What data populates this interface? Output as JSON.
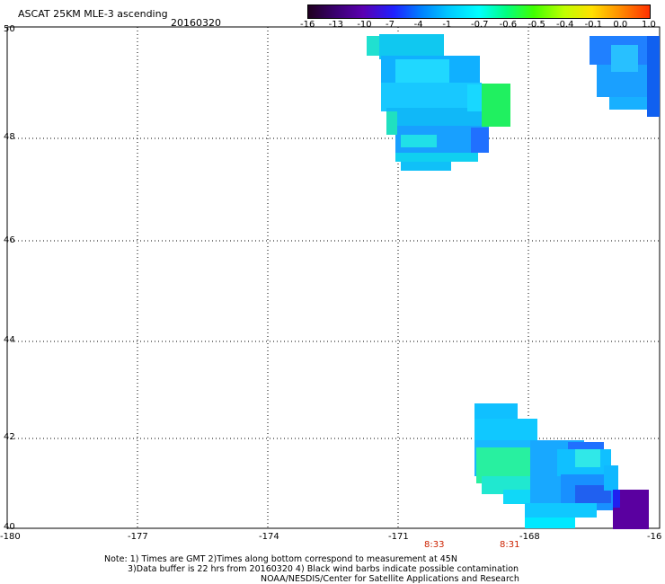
{
  "header": {
    "title": "ASCAT 25KM MLE-3 ascending",
    "date": "20160320"
  },
  "colorbar": {
    "tick_labels": [
      "-16",
      "-13",
      "-10",
      "-7",
      "-4",
      "-1",
      "-0.7",
      "-0.6",
      "-0.5",
      "-0.4",
      "-0.1",
      "0.0",
      "1.0"
    ],
    "colors": [
      "#200020",
      "#3a0070",
      "#5a00b0",
      "#2020ff",
      "#0080ff",
      "#00c8ff",
      "#00ffff",
      "#00ff80",
      "#40ff00",
      "#c0ff00",
      "#ffe000",
      "#ff9000",
      "#ff3000"
    ]
  },
  "map": {
    "lon_labels": [
      "-180",
      "-177",
      "-174",
      "-171",
      "-168",
      "-16"
    ],
    "lat_labels": [
      "50",
      "48",
      "46",
      "44",
      "42",
      "40"
    ],
    "time_labels": [
      "8:33",
      "8:31"
    ]
  },
  "footer": {
    "line1": "Note: 1) Times are GMT 2)Times along bottom correspond to measurement at 45N",
    "line2": "3)Data buffer is 22 hrs from 20160320 4) Black wind barbs indicate possible contamination",
    "line3": "NOAA/NESDIS/Center for Satellite Applications and Research"
  }
}
